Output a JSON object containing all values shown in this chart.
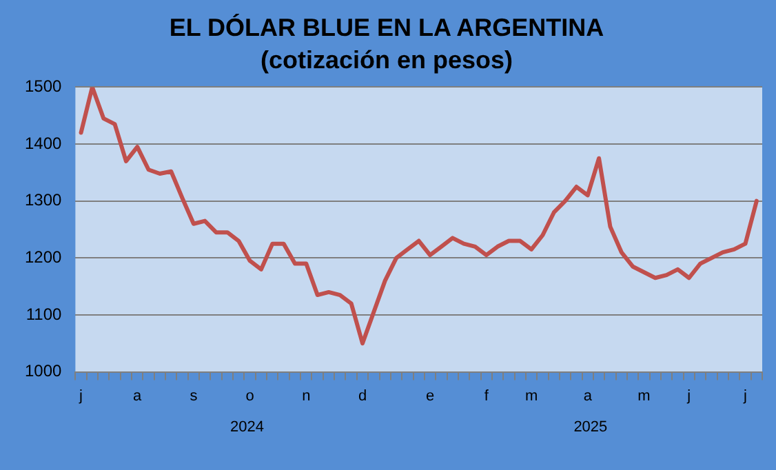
{
  "chart_data": {
    "type": "line",
    "title": "EL DÓLAR BLUE EN LA ARGENTINA",
    "subtitle": "(cotización en pesos)",
    "categories": [
      "j",
      null,
      null,
      null,
      null,
      "a",
      null,
      null,
      null,
      null,
      "s",
      null,
      null,
      null,
      null,
      "o",
      null,
      null,
      null,
      null,
      "n",
      null,
      null,
      null,
      null,
      "d",
      null,
      null,
      null,
      null,
      null,
      "e",
      null,
      null,
      null,
      null,
      "f",
      null,
      null,
      null,
      "m",
      null,
      null,
      null,
      null,
      "a",
      null,
      null,
      null,
      null,
      "m",
      null,
      null,
      null,
      "j",
      null,
      null,
      null,
      null,
      "j",
      null
    ],
    "series": [
      {
        "color": "#c0504d",
        "values": [
          1420,
          1500,
          1445,
          1435,
          1370,
          1395,
          1355,
          1348,
          1352,
          1305,
          1260,
          1265,
          1245,
          1245,
          1230,
          1195,
          1180,
          1225,
          1225,
          1190,
          1190,
          1135,
          1140,
          1135,
          1120,
          1050,
          1105,
          1160,
          1200,
          1215,
          1230,
          1205,
          1220,
          1235,
          1225,
          1220,
          1205,
          1220,
          1230,
          1230,
          1215,
          1240,
          1280,
          1300,
          1325,
          1310,
          1375,
          1255,
          1210,
          1185,
          1175,
          1165,
          1170,
          1180,
          1165,
          1190,
          1200,
          1210,
          1215,
          1225,
          1300
        ]
      }
    ],
    "annotations": [
      "2024",
      "2025"
    ],
    "ylim": [
      1000,
      1500
    ],
    "yticks": [
      1000,
      1100,
      1200,
      1300,
      1400,
      1500
    ],
    "grid": "y",
    "legend": false,
    "marker": "none",
    "line_style": "solid"
  }
}
